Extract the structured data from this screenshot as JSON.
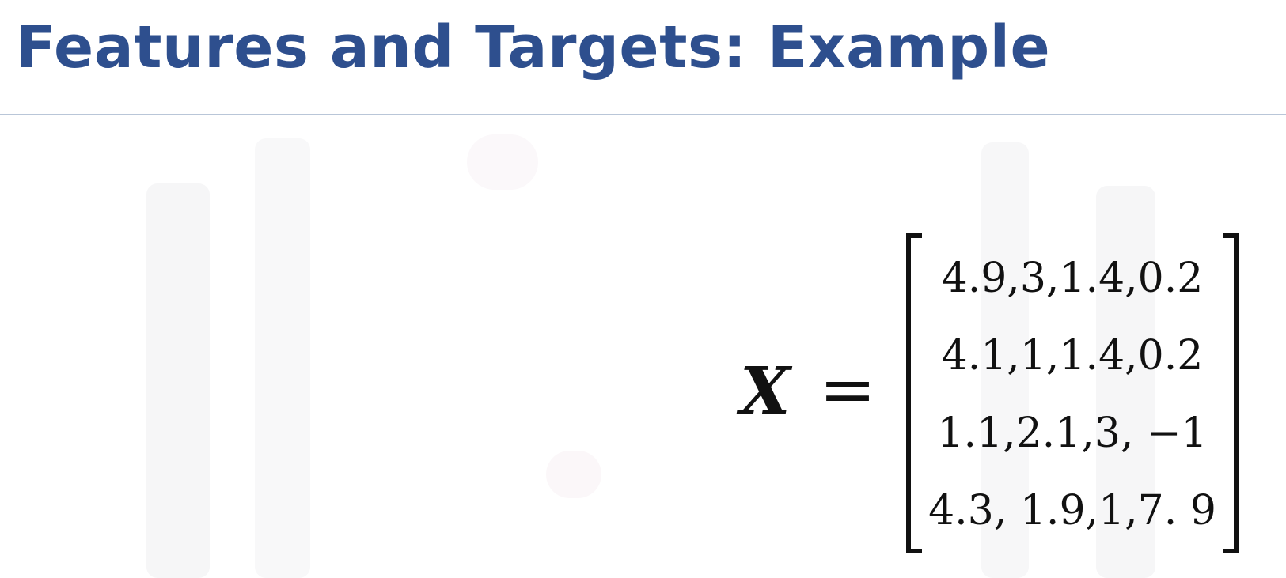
{
  "slide": {
    "title": "Features and Targets: Example",
    "equation": {
      "variable": "X",
      "equals": "=",
      "rows": [
        "4.9,3,1.4,0.2",
        "4.1,1,1.4,0.2",
        "1.1,2.1,3, −1",
        "4.3, 1.9,1,7. 9"
      ]
    }
  },
  "colors": {
    "title": "#2e4f8e",
    "rule": "#b9c6d8",
    "text": "#111111"
  }
}
